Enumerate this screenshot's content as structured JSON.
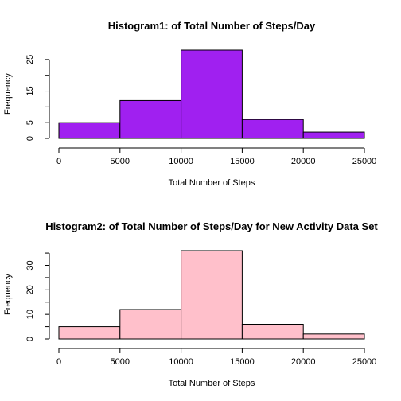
{
  "chart_data": [
    {
      "type": "bar",
      "title": "Histogram1: of Total Number of Steps/Day",
      "xlabel": "Total Number of Steps",
      "ylabel": "Frequency",
      "bin_edges": [
        0,
        5000,
        10000,
        15000,
        20000,
        25000
      ],
      "values": [
        5,
        12,
        28,
        6,
        2
      ],
      "xticks": [
        "0",
        "5000",
        "10000",
        "15000",
        "20000",
        "25000"
      ],
      "yticks": [
        "0",
        "5",
        "15",
        "25"
      ],
      "ytick_values": [
        0,
        5,
        15,
        25
      ],
      "ylim": [
        0,
        28
      ],
      "xlim": [
        0,
        25000
      ],
      "color": "#A020F0",
      "grid": false
    },
    {
      "type": "bar",
      "title": "Histogram2: of Total Number of Steps/Day for New Activity Data Set",
      "xlabel": "Total Number of Steps",
      "ylabel": "Frequency",
      "bin_edges": [
        0,
        5000,
        10000,
        15000,
        20000,
        25000
      ],
      "values": [
        5,
        12,
        36,
        6,
        2
      ],
      "xticks": [
        "0",
        "5000",
        "10000",
        "15000",
        "20000",
        "25000"
      ],
      "yticks": [
        "0",
        "10",
        "20",
        "30"
      ],
      "ytick_values": [
        0,
        10,
        20,
        30
      ],
      "ylim": [
        0,
        36
      ],
      "xlim": [
        0,
        25000
      ],
      "color": "#FFC0CB",
      "grid": false
    }
  ]
}
